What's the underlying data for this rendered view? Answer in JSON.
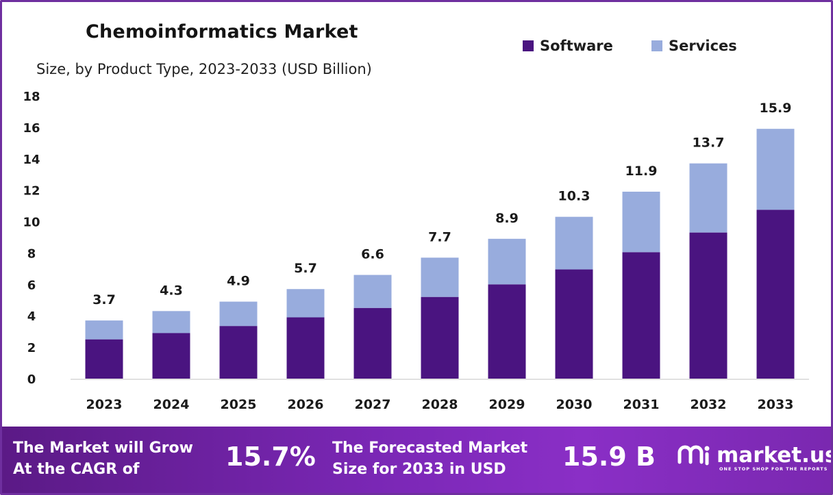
{
  "chart_data": {
    "type": "bar",
    "stacked": true,
    "title": "Chemoinformatics Market",
    "subtitle": "Size, by Product Type, 2023-2033 (USD Billion)",
    "categories": [
      "2023",
      "2024",
      "2025",
      "2026",
      "2027",
      "2028",
      "2029",
      "2030",
      "2031",
      "2032",
      "2033"
    ],
    "series": [
      {
        "name": "Software",
        "color": "#4a1480",
        "values": [
          2.5,
          2.9,
          3.35,
          3.9,
          4.5,
          5.2,
          6.0,
          6.95,
          8.05,
          9.3,
          10.75
        ]
      },
      {
        "name": "Services",
        "color": "#98acdd",
        "values": [
          1.2,
          1.4,
          1.55,
          1.8,
          2.1,
          2.5,
          2.9,
          3.35,
          3.85,
          4.4,
          5.15
        ]
      }
    ],
    "totals": [
      3.7,
      4.3,
      4.9,
      5.7,
      6.6,
      7.7,
      8.9,
      10.3,
      11.9,
      13.7,
      15.9
    ],
    "total_labels": [
      "3.7",
      "4.3",
      "4.9",
      "5.7",
      "6.6",
      "7.7",
      "8.9",
      "10.3",
      "11.9",
      "13.7",
      "15.9"
    ],
    "ylim": [
      0,
      18
    ],
    "yticks": [
      0,
      2,
      4,
      6,
      8,
      10,
      12,
      14,
      16,
      18
    ],
    "xlabel": "",
    "ylabel": "",
    "grid": false,
    "legend_position": "top-right"
  },
  "footer": {
    "cagr_text_line1": "The Market will Grow",
    "cagr_text_line2": "At the CAGR of",
    "cagr_value": "15.7%",
    "forecast_text_line1": "The Forecasted Market",
    "forecast_text_line2": "Size for 2033 in USD",
    "forecast_value": "15.9 B",
    "brand_name": "market.us",
    "brand_tagline": "ONE STOP SHOP FOR THE REPORTS"
  }
}
